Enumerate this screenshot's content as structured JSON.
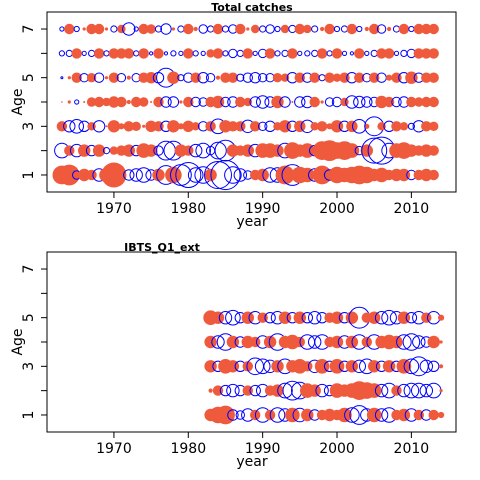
{
  "colors": {
    "positive": "#ef5a3c",
    "negative": "#0000ff"
  },
  "chart_data": [
    {
      "type": "scatter",
      "subtype": "bubble-residual",
      "title": "Total catches",
      "xlabel": "year",
      "ylabel": "Age",
      "xlim": [
        1961,
        2016
      ],
      "ylim": [
        0.3,
        7.7
      ],
      "xticks": [
        1970,
        1980,
        1990,
        2000,
        2010
      ],
      "yticks": [
        1,
        2,
        3,
        4,
        5,
        6,
        7
      ],
      "ytick_labels": [
        "1",
        "",
        "3",
        "",
        "5",
        "",
        "7"
      ],
      "years": [
        1963,
        1964,
        1965,
        1966,
        1967,
        1968,
        1969,
        1970,
        1971,
        1972,
        1973,
        1974,
        1975,
        1976,
        1977,
        1978,
        1979,
        1980,
        1981,
        1982,
        1983,
        1984,
        1985,
        1986,
        1987,
        1988,
        1989,
        1990,
        1991,
        1992,
        1993,
        1994,
        1995,
        1996,
        1997,
        1998,
        1999,
        2000,
        2001,
        2002,
        2003,
        2004,
        2005,
        2006,
        2007,
        2008,
        2009,
        2010,
        2011,
        2012,
        2013
      ],
      "ages": [
        1,
        2,
        3,
        4,
        5,
        6,
        7
      ],
      "residuals": [
        [
          1.8,
          2.0,
          -0.8,
          1.2,
          1.0,
          -1.2,
          1.4,
          2.4,
          0.5,
          -1.0,
          -1.2,
          -1.4,
          -1.0,
          1.2,
          -1.8,
          1.6,
          -2.0,
          -2.4,
          -1.4,
          -1.6,
          1.2,
          -2.6,
          -2.8,
          -1.6,
          -1.2,
          -0.8,
          1.0,
          1.2,
          -1.4,
          -1.4,
          1.8,
          -2.0,
          1.6,
          1.4,
          -1.2,
          1.8,
          -1.0,
          1.6,
          1.4,
          1.6,
          1.8,
          1.6,
          1.2,
          1.4,
          1.0,
          1.2,
          1.2,
          -0.9,
          1.0,
          1.2,
          1.0
        ],
        [
          -1.4,
          1.0,
          -1.2,
          1.2,
          -1.0,
          1.2,
          -0.6,
          0.8,
          1.0,
          1.2,
          -1.0,
          1.4,
          1.2,
          -0.9,
          -1.8,
          -1.8,
          1.2,
          1.0,
          -1.2,
          -1.4,
          -0.8,
          -1.6,
          -2.0,
          1.2,
          1.0,
          1.2,
          -1.2,
          1.4,
          1.4,
          1.2,
          -1.4,
          1.6,
          1.2,
          1.4,
          -1.0,
          1.8,
          2.0,
          1.6,
          1.8,
          1.4,
          -0.8,
          1.2,
          -2.4,
          -2.6,
          -1.4,
          1.4,
          1.6,
          1.2,
          1.0,
          1.2,
          1.0
        ],
        [
          1.0,
          -1.1,
          -1.3,
          -1.0,
          0.8,
          -1.1,
          0.2,
          1.2,
          0.6,
          1.0,
          0.9,
          0.3,
          1.1,
          1.0,
          -1.0,
          1.2,
          0.6,
          1.1,
          0.8,
          -0.9,
          1.0,
          -1.4,
          1.2,
          1.0,
          1.0,
          -1.2,
          1.0,
          -0.8,
          -1.0,
          0.8,
          1.2,
          -1.0,
          1.1,
          -1.2,
          0.8,
          1.0,
          0.6,
          1.2,
          -1.0,
          1.1,
          -1.3,
          0.5,
          -1.8,
          0.8,
          -1.0,
          1.0,
          0.8,
          -0.6,
          -1.1,
          1.0,
          0.9
        ],
        [
          0.1,
          0.3,
          -0.4,
          0.2,
          0.9,
          1.0,
          0.8,
          1.1,
          1.0,
          0.4,
          1.0,
          0.9,
          0.2,
          1.0,
          -1.0,
          -1.0,
          0.3,
          1.0,
          -0.9,
          -0.8,
          1.0,
          1.2,
          -0.9,
          -1.0,
          1.0,
          0.8,
          -1.0,
          -1.2,
          -1.0,
          1.2,
          -1.0,
          0.2,
          -1.0,
          -1.1,
          1.0,
          0.3,
          -0.8,
          -0.9,
          0.8,
          -1.2,
          -1.1,
          -1.0,
          -0.9,
          1.2,
          1.0,
          -0.9,
          -1.0,
          1.0,
          0.9,
          1.0,
          1.0
        ],
        [
          -0.2,
          0.3,
          1.0,
          -0.8,
          0.9,
          -0.9,
          0.3,
          1.0,
          -0.8,
          0.4,
          -0.8,
          1.0,
          1.1,
          -1.0,
          -1.8,
          1.2,
          -0.6,
          -0.9,
          1.0,
          -1.0,
          -0.8,
          0.4,
          1.0,
          1.0,
          -0.7,
          -0.9,
          -1.0,
          -0.8,
          -0.8,
          0.9,
          0.8,
          -1.0,
          1.0,
          -0.9,
          1.0,
          -0.6,
          1.0,
          0.8,
          1.0,
          -1.0,
          1.0,
          -0.8,
          1.0,
          -0.9,
          0.6,
          1.0,
          -1.0,
          1.2,
          -0.9,
          1.0,
          1.0
        ],
        [
          -0.5,
          -0.6,
          1.0,
          -0.4,
          -0.6,
          1.0,
          -0.5,
          1.0,
          1.0,
          1.0,
          -0.5,
          1.0,
          -0.3,
          1.0,
          -0.3,
          -0.5,
          -0.4,
          1.0,
          -0.5,
          -0.4,
          0.8,
          1.0,
          -0.5,
          -0.8,
          -0.6,
          1.0,
          -0.4,
          -0.8,
          1.0,
          -0.5,
          -0.6,
          1.0,
          -0.4,
          -0.5,
          -0.6,
          1.0,
          -0.5,
          1.0,
          -0.4,
          -0.3,
          1.0,
          -0.4,
          -0.6,
          1.0,
          1.0,
          -0.4,
          -0.6,
          -0.8,
          1.0,
          1.0,
          1.0
        ],
        [
          -0.4,
          1.0,
          -0.5,
          0.3,
          1.0,
          1.0,
          0.3,
          -0.6,
          0.8,
          -1.2,
          -0.4,
          1.0,
          0.9,
          -0.6,
          -1.0,
          0.3,
          -0.6,
          1.0,
          0.4,
          -0.8,
          -0.6,
          1.0,
          -0.6,
          -0.8,
          1.0,
          0.3,
          0.8,
          -0.6,
          -0.8,
          -0.5,
          0.8,
          -0.7,
          1.0,
          0.8,
          -0.6,
          0.4,
          1.0,
          -0.5,
          -0.6,
          1.0,
          -0.5,
          0.4,
          1.0,
          -0.8,
          0.4,
          -0.6,
          1.0,
          -0.5,
          1.0,
          1.0,
          1.0
        ]
      ]
    },
    {
      "type": "scatter",
      "subtype": "bubble-residual",
      "title": "IBTS_Q1_ext",
      "xlabel": "year",
      "ylabel": "Age",
      "xlim": [
        1961,
        2016
      ],
      "ylim": [
        0.3,
        7.7
      ],
      "xticks": [
        1970,
        1980,
        1990,
        2000,
        2010
      ],
      "yticks": [
        1,
        2,
        3,
        4,
        5,
        6,
        7
      ],
      "ytick_labels": [
        "1",
        "",
        "3",
        "",
        "5",
        "",
        "7"
      ],
      "years": [
        1983,
        1984,
        1985,
        1986,
        1987,
        1988,
        1989,
        1990,
        1991,
        1992,
        1993,
        1994,
        1995,
        1996,
        1997,
        1998,
        1999,
        2000,
        2001,
        2002,
        2003,
        2004,
        2005,
        2006,
        2007,
        2008,
        2009,
        2010,
        2011,
        2012,
        2013,
        2014
      ],
      "ages": [
        1,
        2,
        3,
        4,
        5
      ],
      "residuals": [
        [
          1.2,
          1.6,
          1.8,
          -1.0,
          -0.8,
          -1.2,
          1.0,
          -1.4,
          1.0,
          -1.4,
          -1.2,
          1.4,
          -1.3,
          1.2,
          -1.0,
          1.0,
          1.2,
          1.0,
          1.4,
          -1.4,
          -1.8,
          -1.2,
          1.4,
          -1.2,
          -1.4,
          1.0,
          1.2,
          -1.2,
          1.0,
          -1.0,
          1.0,
          0.6
        ],
        [
          0.4,
          1.0,
          -1.0,
          -1.2,
          -1.0,
          1.0,
          -1.0,
          -1.2,
          1.0,
          1.2,
          -1.4,
          -1.8,
          -1.6,
          1.4,
          1.2,
          -1.2,
          -1.0,
          1.4,
          1.2,
          1.4,
          1.8,
          1.6,
          1.4,
          -1.2,
          -1.4,
          1.0,
          -1.2,
          -1.4,
          -1.4,
          -1.2,
          -1.4,
          0.3
        ],
        [
          1.2,
          -1.0,
          1.4,
          1.2,
          -1.0,
          1.0,
          -1.6,
          -1.4,
          -1.2,
          1.2,
          -1.4,
          1.2,
          1.4,
          1.0,
          -1.2,
          1.4,
          -1.0,
          1.4,
          -1.0,
          1.2,
          -1.2,
          -1.4,
          1.2,
          -1.0,
          1.2,
          -1.0,
          1.4,
          -1.4,
          -1.8,
          -1.2,
          -1.0,
          0.4
        ],
        [
          1.2,
          -1.2,
          -1.6,
          1.2,
          -1.0,
          1.2,
          1.0,
          -1.2,
          1.2,
          -1.6,
          1.2,
          1.4,
          1.0,
          -1.4,
          -1.2,
          -1.4,
          1.0,
          1.2,
          -1.2,
          1.2,
          -1.4,
          1.0,
          -1.4,
          1.2,
          1.4,
          1.2,
          -1.4,
          -1.6,
          -1.2,
          -1.0,
          1.2,
          0.3
        ],
        [
          1.4,
          1.2,
          -1.2,
          -1.4,
          -1.0,
          1.2,
          -1.2,
          1.0,
          -1.0,
          -1.2,
          1.2,
          -1.0,
          1.2,
          -1.0,
          -1.2,
          -1.0,
          1.0,
          1.2,
          -1.0,
          1.2,
          -2.0,
          1.0,
          1.2,
          -1.2,
          -1.4,
          -1.2,
          1.2,
          -1.0,
          -1.2,
          1.0,
          -1.2,
          0.6
        ]
      ]
    }
  ]
}
